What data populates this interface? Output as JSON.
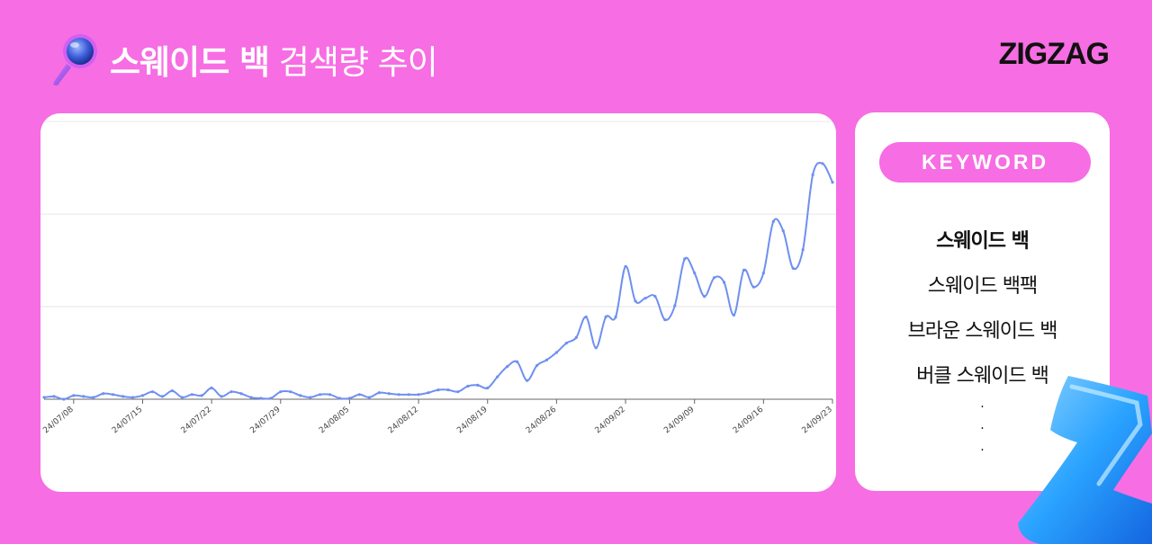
{
  "header": {
    "title_bold": "스웨이드 백",
    "title_light": "검색량 추이",
    "logo": "ZIGZAG",
    "icon": "magnifier-icon"
  },
  "keywords": {
    "header": "KEYWORD",
    "items": [
      {
        "label": "스웨이드 백",
        "active": true
      },
      {
        "label": "스웨이드 백팩",
        "active": false
      },
      {
        "label": "브라운 스웨이드 백",
        "active": false
      },
      {
        "label": "버클 스웨이드 백",
        "active": false
      }
    ],
    "more": [
      "·",
      "·",
      "·"
    ]
  },
  "colors": {
    "background": "#f76de3",
    "line": "#6f8ff0",
    "card": "#ffffff"
  },
  "chart_data": {
    "type": "line",
    "title": "",
    "xlabel": "",
    "ylabel": "",
    "ylim": [
      0,
      3
    ],
    "grid": true,
    "x_ticks": [
      "24/07/08",
      "24/07/15",
      "24/07/22",
      "24/07/29",
      "24/08/05",
      "24/08/12",
      "24/08/19",
      "24/08/26",
      "24/09/02",
      "24/09/09",
      "24/09/16",
      "24/09/23"
    ],
    "x_start": "24/07/05",
    "x_end": "24/09/23",
    "series": [
      {
        "name": "",
        "x": [
          "24/07/05",
          "24/07/06",
          "24/07/07",
          "24/07/08",
          "24/07/09",
          "24/07/10",
          "24/07/11",
          "24/07/12",
          "24/07/13",
          "24/07/14",
          "24/07/15",
          "24/07/16",
          "24/07/17",
          "24/07/18",
          "24/07/19",
          "24/07/20",
          "24/07/21",
          "24/07/22",
          "24/07/23",
          "24/07/24",
          "24/07/25",
          "24/07/26",
          "24/07/27",
          "24/07/28",
          "24/07/29",
          "24/07/30",
          "24/07/31",
          "24/08/01",
          "24/08/02",
          "24/08/03",
          "24/08/04",
          "24/08/05",
          "24/08/06",
          "24/08/07",
          "24/08/08",
          "24/08/09",
          "24/08/10",
          "24/08/11",
          "24/08/12",
          "24/08/13",
          "24/08/14",
          "24/08/15",
          "24/08/16",
          "24/08/17",
          "24/08/18",
          "24/08/19",
          "24/08/20",
          "24/08/21",
          "24/08/22",
          "24/08/23",
          "24/08/24",
          "24/08/25",
          "24/08/26",
          "24/08/27",
          "24/08/28",
          "24/08/29",
          "24/08/30",
          "24/08/31",
          "24/09/01",
          "24/09/02",
          "24/09/03",
          "24/09/04",
          "24/09/05",
          "24/09/06",
          "24/09/07",
          "24/09/08",
          "24/09/09",
          "24/09/10",
          "24/09/11",
          "24/09/12",
          "24/09/13",
          "24/09/14",
          "24/09/15",
          "24/09/16",
          "24/09/17",
          "24/09/18",
          "24/09/19",
          "24/09/20",
          "24/09/21",
          "24/09/22",
          "24/09/23"
        ],
        "values": [
          0.02,
          0.03,
          0.0,
          0.04,
          0.03,
          0.02,
          0.06,
          0.05,
          0.03,
          0.02,
          0.04,
          0.08,
          0.03,
          0.09,
          0.02,
          0.05,
          0.04,
          0.12,
          0.03,
          0.08,
          0.06,
          0.02,
          0.01,
          0.01,
          0.08,
          0.08,
          0.04,
          0.02,
          0.05,
          0.05,
          0.01,
          0.01,
          0.05,
          0.02,
          0.07,
          0.06,
          0.05,
          0.05,
          0.05,
          0.07,
          0.1,
          0.1,
          0.08,
          0.14,
          0.15,
          0.12,
          0.24,
          0.35,
          0.4,
          0.2,
          0.36,
          0.42,
          0.5,
          0.6,
          0.66,
          0.88,
          0.55,
          0.88,
          0.88,
          1.42,
          1.05,
          1.08,
          1.1,
          0.85,
          1.0,
          1.5,
          1.35,
          1.1,
          1.3,
          1.25,
          0.9,
          1.38,
          1.2,
          1.35,
          1.9,
          1.8,
          1.4,
          1.6,
          2.4,
          2.52,
          2.32
        ]
      }
    ]
  }
}
